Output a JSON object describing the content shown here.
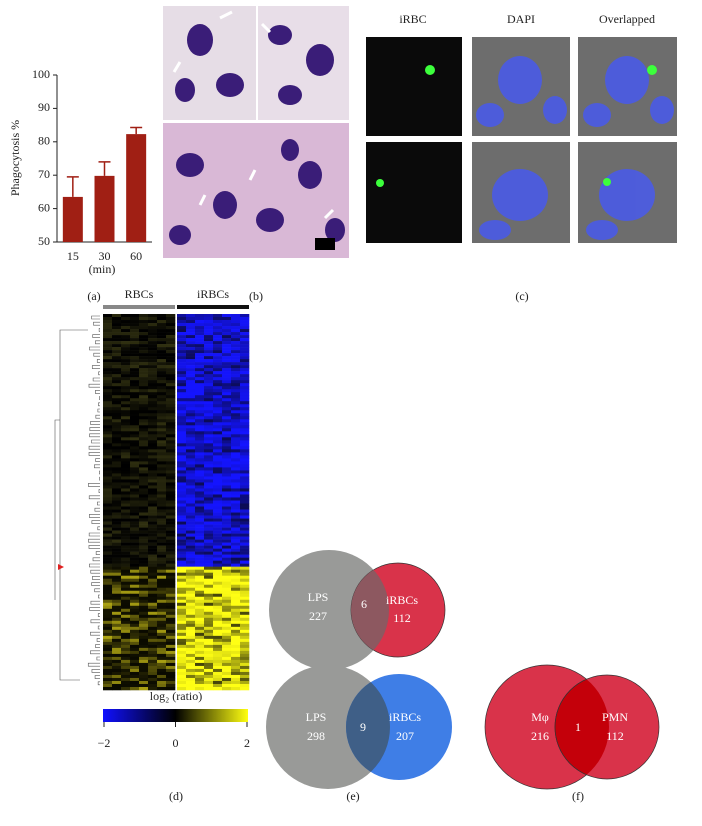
{
  "chart_data": {
    "type": "bar",
    "ylabel": "Phagocytosis %",
    "xlabel": "(min)",
    "categories": [
      "15",
      "30",
      "60"
    ],
    "values": [
      63.5,
      69.8,
      82.3
    ],
    "errors": [
      6,
      4.2,
      2
    ],
    "color": "#a01f14",
    "ylim": [
      50,
      100
    ],
    "yticks": [
      50,
      60,
      70,
      80,
      90,
      100
    ]
  },
  "panel_labels": [
    "(a)",
    "(b)",
    "(c)",
    "(d)",
    "(e)",
    "(f)"
  ],
  "microscopy": {
    "columns": [
      "iRBC",
      "DAPI",
      "Overlapped"
    ]
  },
  "heatmap": {
    "groups": [
      "RBCs",
      "iRBCs"
    ],
    "legend_title": "log₂ (ratio)",
    "legend_ticks": [
      {
        "value": -2,
        "label": "−2"
      },
      0,
      2
    ]
  },
  "venns": [
    {
      "left": {
        "label": "LPS",
        "count": 227
      },
      "overlap": 6,
      "right": {
        "label": "iRBCs",
        "count": 112
      }
    },
    {
      "left": {
        "label": "LPS",
        "count": 298
      },
      "overlap": 9,
      "right": {
        "label": "iRBCs",
        "count": 207
      }
    },
    {
      "left": {
        "label": "Mφ",
        "count": 216
      },
      "overlap": 1,
      "right": {
        "label": "PMN",
        "count": 112
      }
    }
  ]
}
